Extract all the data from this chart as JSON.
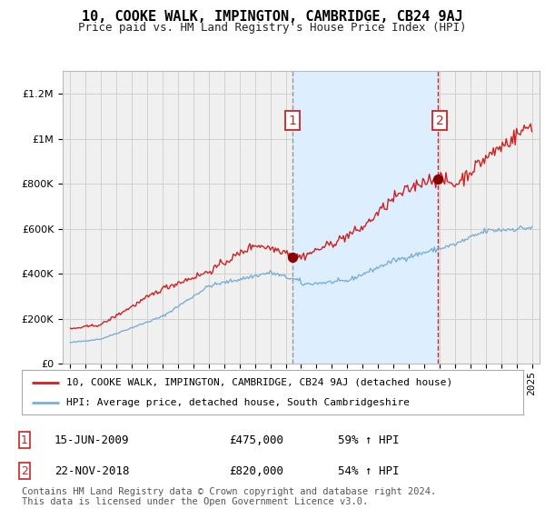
{
  "title": "10, COOKE WALK, IMPINGTON, CAMBRIDGE, CB24 9AJ",
  "subtitle": "Price paid vs. HM Land Registry's House Price Index (HPI)",
  "legend_line1": "10, COOKE WALK, IMPINGTON, CAMBRIDGE, CB24 9AJ (detached house)",
  "legend_line2": "HPI: Average price, detached house, South Cambridgeshire",
  "annotation1_date": "15-JUN-2009",
  "annotation1_price": "£475,000",
  "annotation1_pct": "59% ↑ HPI",
  "annotation2_date": "22-NOV-2018",
  "annotation2_price": "£820,000",
  "annotation2_pct": "54% ↑ HPI",
  "footer": "Contains HM Land Registry data © Crown copyright and database right 2024.\nThis data is licensed under the Open Government Licence v3.0.",
  "hpi_color": "#7bafd4",
  "price_color": "#cc2222",
  "bg_color": "#ffffff",
  "plot_bg_color": "#f0f0f0",
  "grid_color": "#cccccc",
  "vline1_color": "#999999",
  "vline2_color": "#cc2222",
  "shade_color": "#ddeeff",
  "ylim": [
    0,
    1300000
  ],
  "yticks": [
    0,
    200000,
    400000,
    600000,
    800000,
    1000000,
    1200000
  ],
  "sale1_x": 2009.45,
  "sale1_y": 475000,
  "sale2_x": 2018.9,
  "sale2_y": 820000,
  "xlim_left": 1994.5,
  "xlim_right": 2025.5,
  "title_fontsize": 11,
  "subtitle_fontsize": 9,
  "tick_fontsize": 8,
  "legend_fontsize": 8,
  "annotation_fontsize": 9,
  "footer_fontsize": 7.5
}
